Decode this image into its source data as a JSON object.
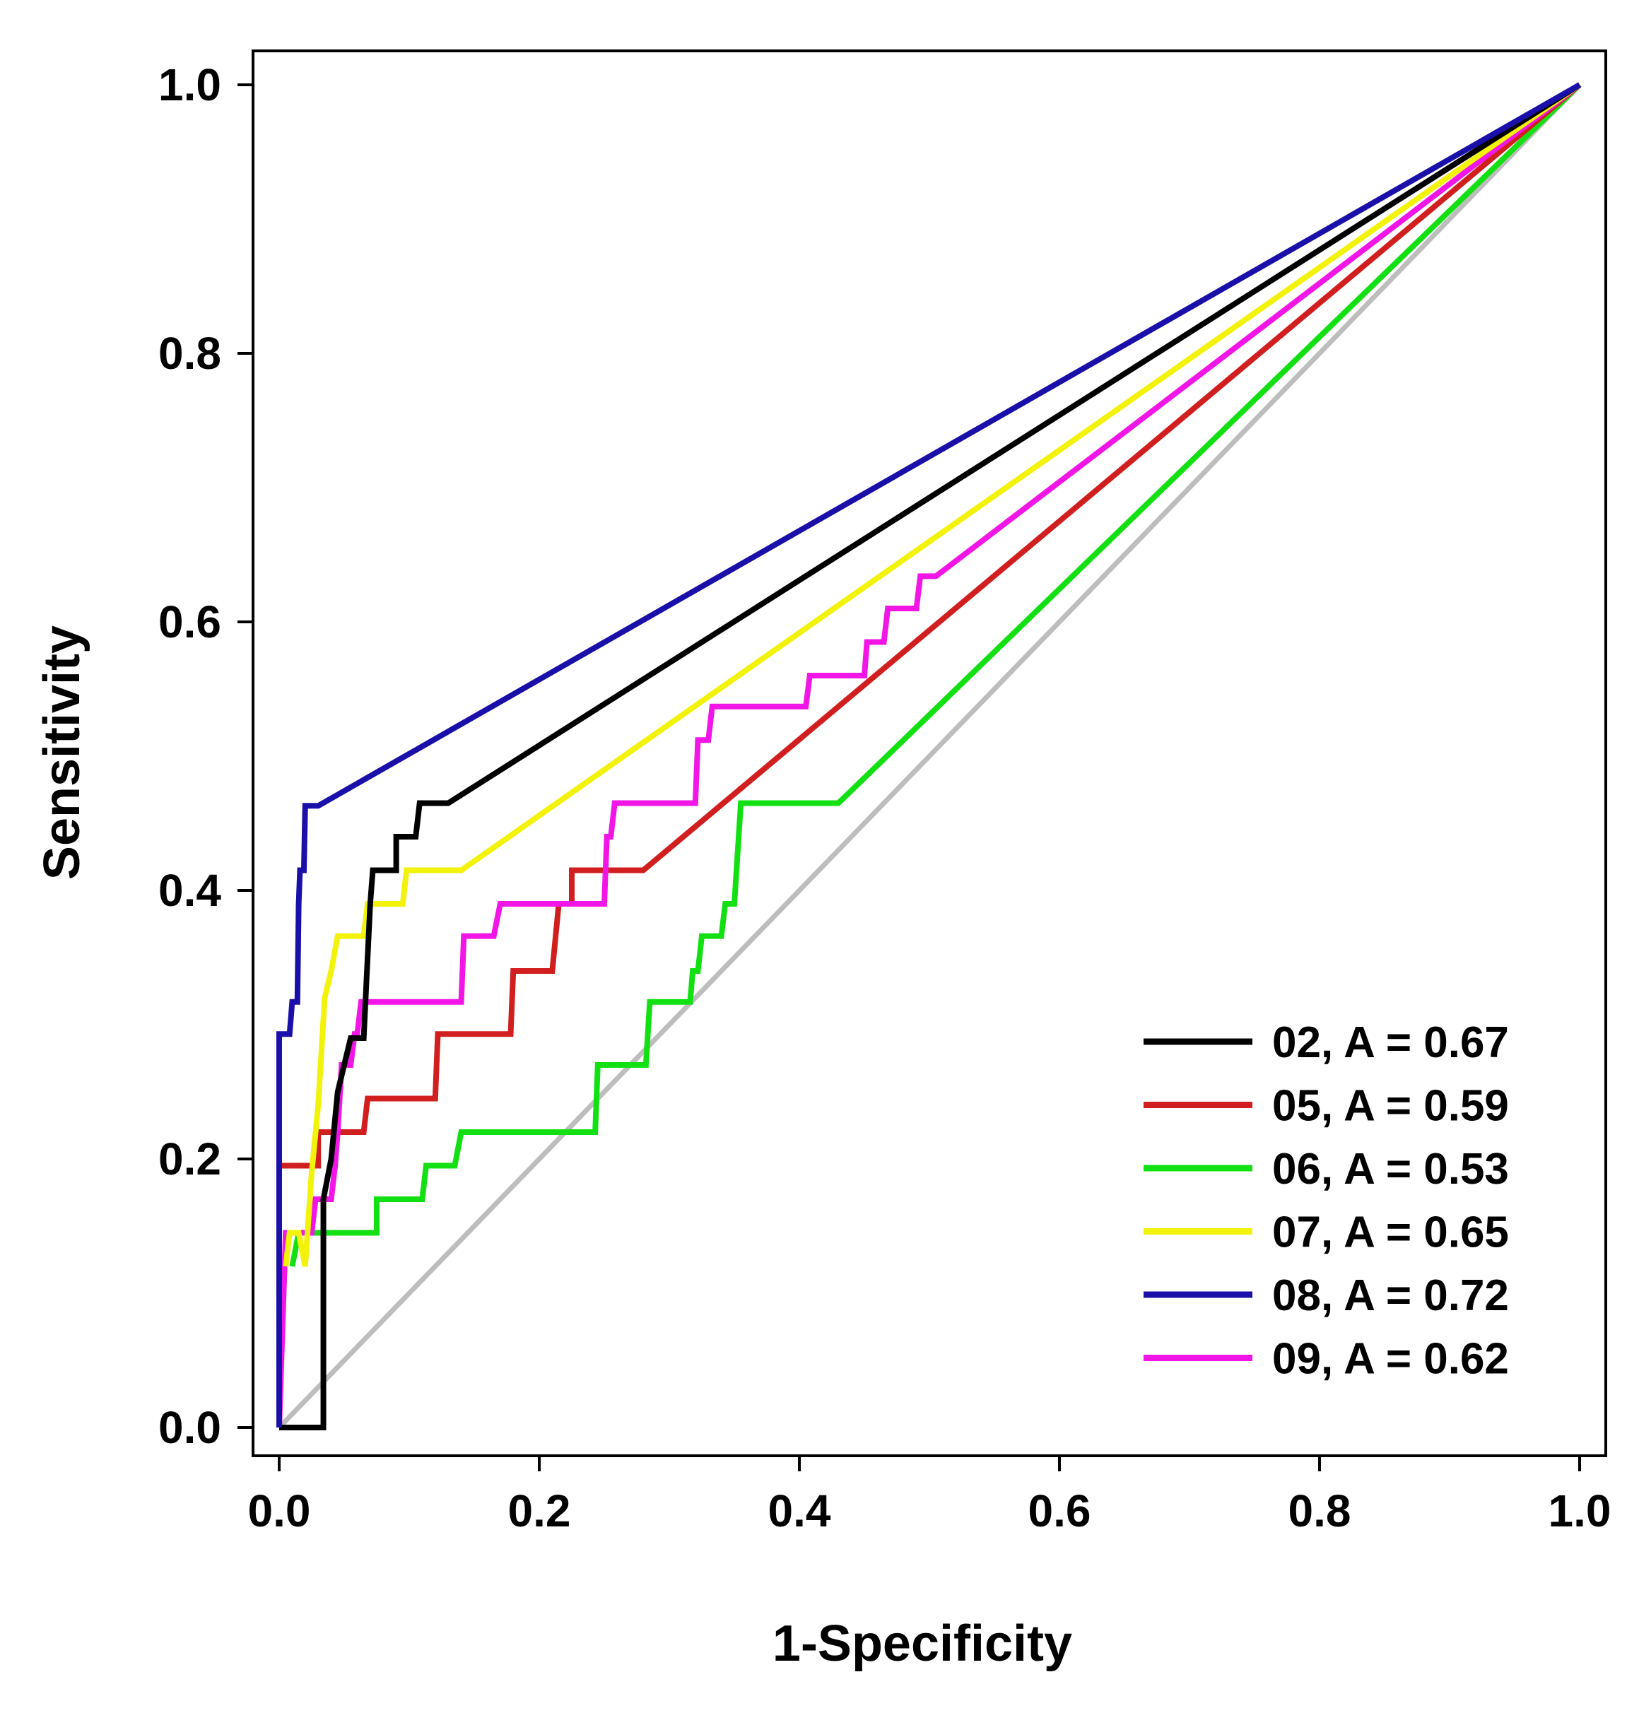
{
  "chart_data": {
    "type": "line",
    "title": "",
    "xlabel": "1-Specificity",
    "ylabel": "Sensitivity",
    "xlim": [
      0,
      1
    ],
    "ylim": [
      0,
      1
    ],
    "grid": false,
    "legend_position": "bottom-right",
    "x_ticks": [
      "0.0",
      "0.2",
      "0.4",
      "0.6",
      "0.8",
      "1.0"
    ],
    "y_ticks": [
      "0.0",
      "0.2",
      "0.4",
      "0.6",
      "0.8",
      "1.0"
    ],
    "reference_line": {
      "name": "chance",
      "color": "#bdbdbd",
      "points": [
        [
          0,
          0
        ],
        [
          1,
          1
        ]
      ]
    },
    "series": [
      {
        "name": "02, A = 0.67",
        "color": "#000000",
        "points": [
          [
            0,
            0
          ],
          [
            0.034,
            0
          ],
          [
            0.034,
            0.17
          ],
          [
            0.04,
            0.2
          ],
          [
            0.045,
            0.25
          ],
          [
            0.05,
            0.27
          ],
          [
            0.055,
            0.29
          ],
          [
            0.065,
            0.29
          ],
          [
            0.07,
            0.39
          ],
          [
            0.072,
            0.415
          ],
          [
            0.09,
            0.415
          ],
          [
            0.09,
            0.44
          ],
          [
            0.105,
            0.44
          ],
          [
            0.108,
            0.465
          ],
          [
            0.13,
            0.465
          ],
          [
            1,
            1
          ]
        ]
      },
      {
        "name": "05, A = 0.59",
        "color": "#d11f1f",
        "points": [
          [
            0,
            0
          ],
          [
            0,
            0.195
          ],
          [
            0.03,
            0.195
          ],
          [
            0.03,
            0.22
          ],
          [
            0.05,
            0.22
          ],
          [
            0.05,
            0.22
          ],
          [
            0.065,
            0.22
          ],
          [
            0.068,
            0.245
          ],
          [
            0.12,
            0.245
          ],
          [
            0.122,
            0.293
          ],
          [
            0.178,
            0.293
          ],
          [
            0.18,
            0.34
          ],
          [
            0.21,
            0.34
          ],
          [
            0.215,
            0.39
          ],
          [
            0.225,
            0.39
          ],
          [
            0.225,
            0.415
          ],
          [
            0.28,
            0.415
          ],
          [
            1,
            1
          ]
        ]
      },
      {
        "name": "06, A = 0.53",
        "color": "#12e012",
        "points": [
          [
            0.01,
            0.12
          ],
          [
            0.015,
            0.145
          ],
          [
            0.03,
            0.145
          ],
          [
            0.035,
            0.145
          ],
          [
            0.075,
            0.145
          ],
          [
            0.075,
            0.17
          ],
          [
            0.11,
            0.17
          ],
          [
            0.113,
            0.195
          ],
          [
            0.135,
            0.195
          ],
          [
            0.14,
            0.22
          ],
          [
            0.243,
            0.22
          ],
          [
            0.245,
            0.27
          ],
          [
            0.282,
            0.27
          ],
          [
            0.285,
            0.317
          ],
          [
            0.316,
            0.317
          ],
          [
            0.318,
            0.34
          ],
          [
            0.322,
            0.34
          ],
          [
            0.325,
            0.366
          ],
          [
            0.34,
            0.366
          ],
          [
            0.343,
            0.39
          ],
          [
            0.35,
            0.39
          ],
          [
            0.355,
            0.465
          ],
          [
            0.43,
            0.465
          ],
          [
            1,
            1
          ]
        ]
      },
      {
        "name": "07, A = 0.65",
        "color": "#f2f20a",
        "points": [
          [
            0.005,
            0.12
          ],
          [
            0.008,
            0.145
          ],
          [
            0.015,
            0.145
          ],
          [
            0.02,
            0.12
          ],
          [
            0.025,
            0.19
          ],
          [
            0.03,
            0.24
          ],
          [
            0.035,
            0.32
          ],
          [
            0.04,
            0.34
          ],
          [
            0.045,
            0.366
          ],
          [
            0.065,
            0.366
          ],
          [
            0.068,
            0.39
          ],
          [
            0.095,
            0.39
          ],
          [
            0.098,
            0.415
          ],
          [
            0.14,
            0.415
          ],
          [
            1,
            1
          ]
        ]
      },
      {
        "name": "08, A = 0.72",
        "color": "#1a0fa8",
        "points": [
          [
            0,
            0
          ],
          [
            0,
            0.293
          ],
          [
            0.008,
            0.293
          ],
          [
            0.01,
            0.317
          ],
          [
            0.014,
            0.317
          ],
          [
            0.015,
            0.39
          ],
          [
            0.016,
            0.415
          ],
          [
            0.019,
            0.415
          ],
          [
            0.02,
            0.463
          ],
          [
            0.03,
            0.463
          ],
          [
            1,
            1
          ]
        ]
      },
      {
        "name": "09, A = 0.62",
        "color": "#f216e6",
        "points": [
          [
            0,
            0
          ],
          [
            0.005,
            0.145
          ],
          [
            0.025,
            0.145
          ],
          [
            0.028,
            0.17
          ],
          [
            0.04,
            0.17
          ],
          [
            0.043,
            0.195
          ],
          [
            0.045,
            0.22
          ],
          [
            0.048,
            0.27
          ],
          [
            0.055,
            0.27
          ],
          [
            0.058,
            0.293
          ],
          [
            0.06,
            0.293
          ],
          [
            0.063,
            0.317
          ],
          [
            0.14,
            0.317
          ],
          [
            0.142,
            0.366
          ],
          [
            0.165,
            0.366
          ],
          [
            0.17,
            0.39
          ],
          [
            0.25,
            0.39
          ],
          [
            0.252,
            0.44
          ],
          [
            0.255,
            0.44
          ],
          [
            0.258,
            0.465
          ],
          [
            0.32,
            0.465
          ],
          [
            0.322,
            0.512
          ],
          [
            0.33,
            0.512
          ],
          [
            0.333,
            0.537
          ],
          [
            0.405,
            0.537
          ],
          [
            0.408,
            0.56
          ],
          [
            0.45,
            0.56
          ],
          [
            0.452,
            0.585
          ],
          [
            0.465,
            0.585
          ],
          [
            0.468,
            0.61
          ],
          [
            0.49,
            0.61
          ],
          [
            0.493,
            0.634
          ],
          [
            0.505,
            0.634
          ],
          [
            1,
            1
          ]
        ]
      }
    ]
  }
}
